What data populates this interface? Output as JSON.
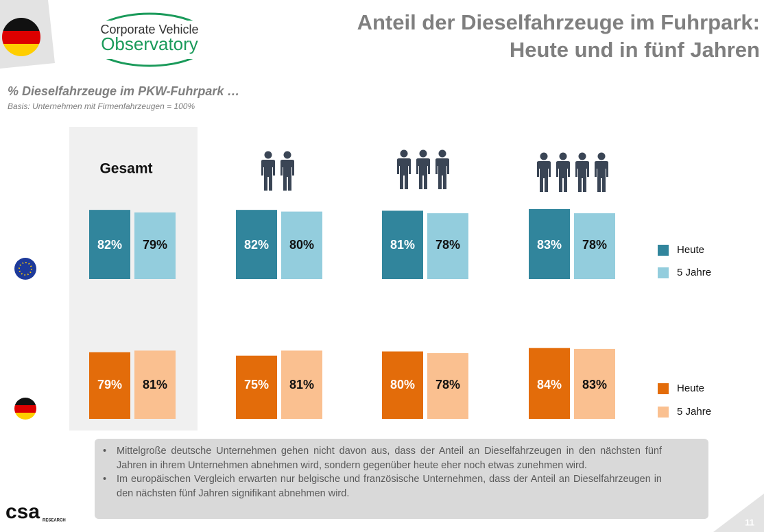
{
  "title": [
    "Anteil der Dieselfahrzeuge im Fuhrpark:",
    "Heute und in fünf Jahren"
  ],
  "logo": [
    "Corporate Vehicle",
    "Observatory"
  ],
  "subtitle": "% Dieselfahrzeuge im PKW-Fuhrpark …",
  "basis": "Basis: Unternehmen mit Firmenfahrzeugen  = 100%",
  "notes": [
    "Mittelgroße deutsche Unternehmen gehen nicht davon aus, dass der Anteil an Dieselfahrzeugen in den nächsten fünf Jahren in ihrem Unternehmen abnehmen wird, sondern gegenüber heute eher noch etwas zunehmen wird.",
    "Im europäischen Vergleich erwarten nur belgische und französische Unternehmen, dass der Anteil an Dieselfahrzeugen in den nächsten fünf Jahren signifikant abnehmen wird."
  ],
  "brand": [
    "csa",
    "RESEARCH"
  ],
  "page_number": "11",
  "chart_data": {
    "type": "bar",
    "categories": [
      "Gesamt",
      null,
      null,
      null
    ],
    "series": [
      {
        "name": "Heute",
        "color": "#31859c",
        "values": [
          82,
          82,
          81,
          83
        ],
        "value_labels": [
          "82%",
          "82%",
          "81%",
          "83%"
        ]
      },
      {
        "name": "5 Jahre",
        "color": "#93cddd",
        "values": [
          79,
          80,
          78,
          78
        ],
        "value_labels": [
          "79%",
          "80%",
          "78%",
          "78%"
        ]
      },
      {
        "name": "Heute",
        "color": "#e36c0a",
        "values": [
          79,
          75,
          80,
          84
        ],
        "value_labels": [
          "79%",
          "75%",
          "80%",
          "84%"
        ]
      },
      {
        "name": "5 Jahre",
        "color": "#fac090",
        "values": [
          81,
          81,
          78,
          83
        ],
        "value_labels": [
          "81%",
          "81%",
          "78%",
          "83%"
        ]
      }
    ]
  }
}
